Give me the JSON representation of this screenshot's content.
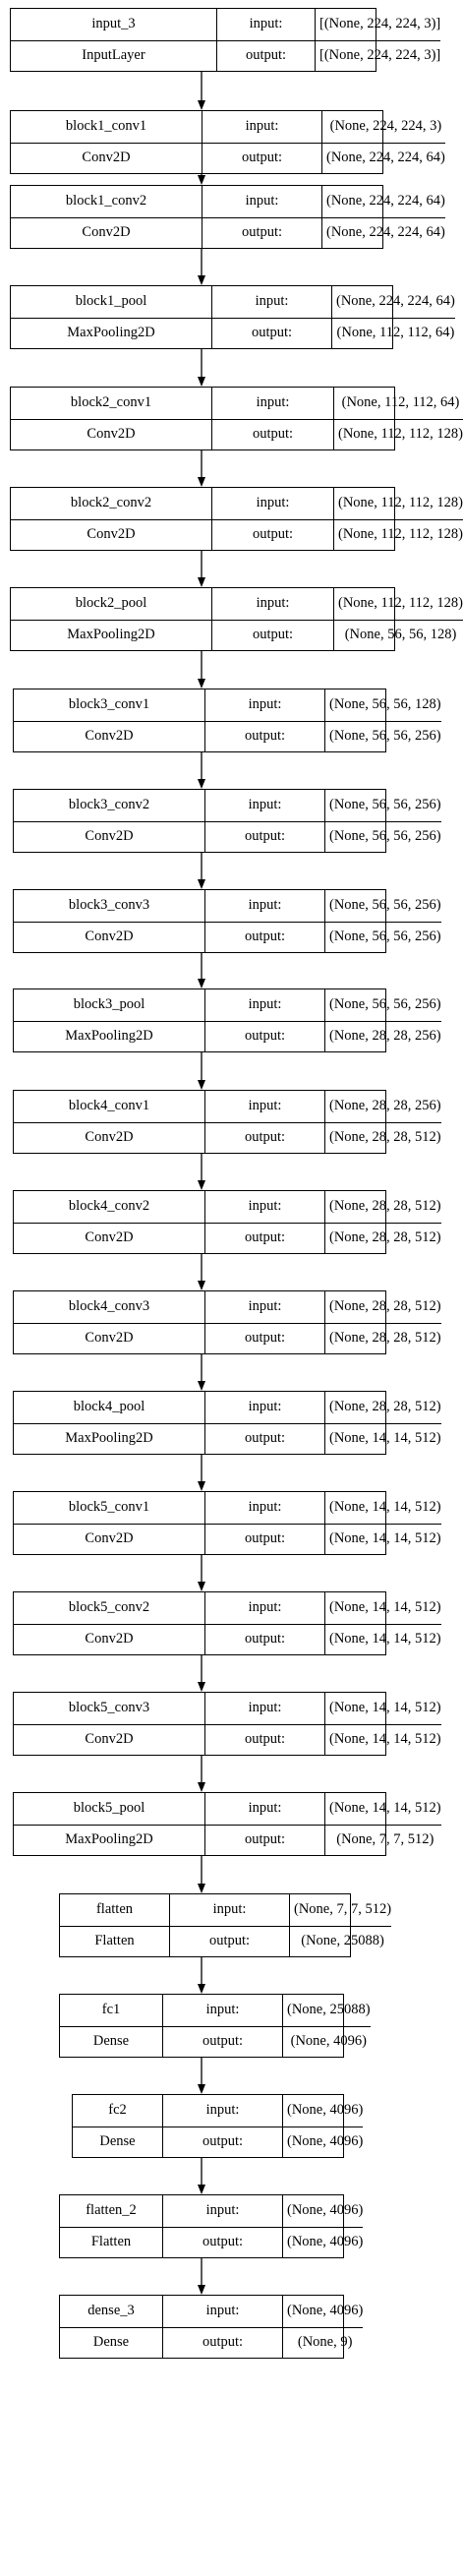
{
  "diagram": {
    "input_label": "input:",
    "output_label": "output:",
    "layers": [
      {
        "name": "input_3",
        "type": "InputLayer",
        "input_shape": "[(None, 224, 224, 3)]",
        "output_shape": "[(None, 224, 224, 3)]"
      },
      {
        "name": "block1_conv1",
        "type": "Conv2D",
        "input_shape": "(None, 224, 224, 3)",
        "output_shape": "(None, 224, 224, 64)"
      },
      {
        "name": "block1_conv2",
        "type": "Conv2D",
        "input_shape": "(None, 224, 224, 64)",
        "output_shape": "(None, 224, 224, 64)"
      },
      {
        "name": "block1_pool",
        "type": "MaxPooling2D",
        "input_shape": "(None, 224, 224, 64)",
        "output_shape": "(None, 112, 112, 64)"
      },
      {
        "name": "block2_conv1",
        "type": "Conv2D",
        "input_shape": "(None, 112, 112, 64)",
        "output_shape": "(None, 112, 112, 128)"
      },
      {
        "name": "block2_conv2",
        "type": "Conv2D",
        "input_shape": "(None, 112, 112, 128)",
        "output_shape": "(None, 112, 112, 128)"
      },
      {
        "name": "block2_pool",
        "type": "MaxPooling2D",
        "input_shape": "(None, 112, 112, 128)",
        "output_shape": "(None, 56, 56, 128)"
      },
      {
        "name": "block3_conv1",
        "type": "Conv2D",
        "input_shape": "(None, 56, 56, 128)",
        "output_shape": "(None, 56, 56, 256)"
      },
      {
        "name": "block3_conv2",
        "type": "Conv2D",
        "input_shape": "(None, 56, 56, 256)",
        "output_shape": "(None, 56, 56, 256)"
      },
      {
        "name": "block3_conv3",
        "type": "Conv2D",
        "input_shape": "(None, 56, 56, 256)",
        "output_shape": "(None, 56, 56, 256)"
      },
      {
        "name": "block3_pool",
        "type": "MaxPooling2D",
        "input_shape": "(None, 56, 56, 256)",
        "output_shape": "(None, 28, 28, 256)"
      },
      {
        "name": "block4_conv1",
        "type": "Conv2D",
        "input_shape": "(None, 28, 28, 256)",
        "output_shape": "(None, 28, 28, 512)"
      },
      {
        "name": "block4_conv2",
        "type": "Conv2D",
        "input_shape": "(None, 28, 28, 512)",
        "output_shape": "(None, 28, 28, 512)"
      },
      {
        "name": "block4_conv3",
        "type": "Conv2D",
        "input_shape": "(None, 28, 28, 512)",
        "output_shape": "(None, 28, 28, 512)"
      },
      {
        "name": "block4_pool",
        "type": "MaxPooling2D",
        "input_shape": "(None, 28, 28, 512)",
        "output_shape": "(None, 14, 14, 512)"
      },
      {
        "name": "block5_conv1",
        "type": "Conv2D",
        "input_shape": "(None, 14, 14, 512)",
        "output_shape": "(None, 14, 14, 512)"
      },
      {
        "name": "block5_conv2",
        "type": "Conv2D",
        "input_shape": "(None, 14, 14, 512)",
        "output_shape": "(None, 14, 14, 512)"
      },
      {
        "name": "block5_conv3",
        "type": "Conv2D",
        "input_shape": "(None, 14, 14, 512)",
        "output_shape": "(None, 14, 14, 512)"
      },
      {
        "name": "block5_pool",
        "type": "MaxPooling2D",
        "input_shape": "(None, 14, 14, 512)",
        "output_shape": "(None, 7, 7, 512)"
      },
      {
        "name": "flatten",
        "type": "Flatten",
        "input_shape": "(None, 7, 7, 512)",
        "output_shape": "(None, 25088)"
      },
      {
        "name": "fc1",
        "type": "Dense",
        "input_shape": "(None, 25088)",
        "output_shape": "(None, 4096)"
      },
      {
        "name": "fc2",
        "type": "Dense",
        "input_shape": "(None, 4096)",
        "output_shape": "(None, 4096)"
      },
      {
        "name": "flatten_2",
        "type": "Flatten",
        "input_shape": "(None, 4096)",
        "output_shape": "(None, 4096)"
      },
      {
        "name": "dense_3",
        "type": "Dense",
        "input_shape": "(None, 4096)",
        "output_shape": "(None, 9)"
      }
    ]
  }
}
